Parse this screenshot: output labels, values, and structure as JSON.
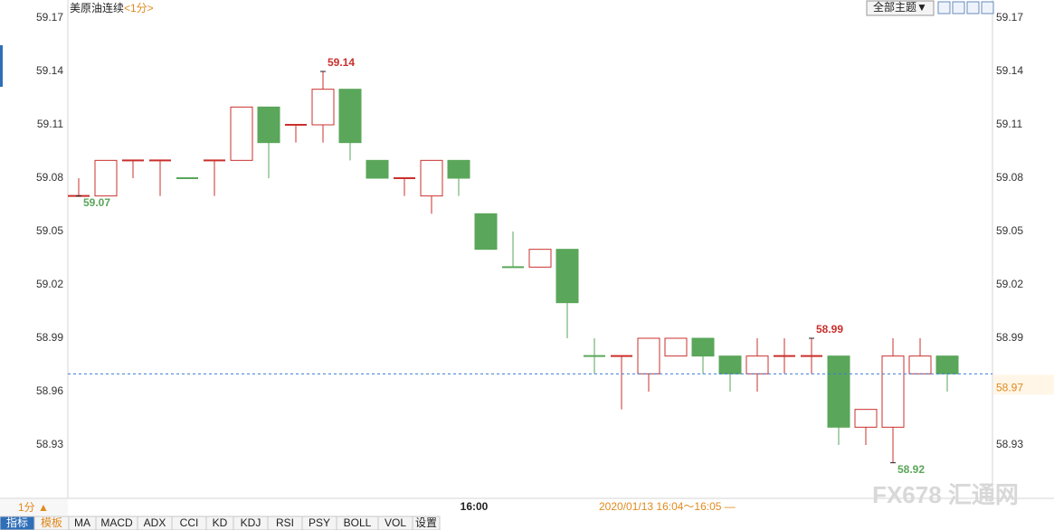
{
  "chart_data": {
    "type": "candlestick",
    "title": "美原油连续",
    "subtitle": "<1分>",
    "categories": [
      null,
      null,
      null,
      null,
      null,
      null,
      null,
      null,
      null,
      null,
      null,
      null,
      null,
      null,
      null,
      "16:00",
      null,
      null,
      null,
      null,
      null,
      null,
      null,
      null,
      null,
      null,
      null,
      null,
      null,
      null,
      null,
      null,
      null
    ],
    "open": [
      59.07,
      59.07,
      59.09,
      59.09,
      59.08,
      59.09,
      59.09,
      59.12,
      59.11,
      59.11,
      59.13,
      59.09,
      59.08,
      59.07,
      59.09,
      59.06,
      59.03,
      59.03,
      59.04,
      58.98,
      58.98,
      58.97,
      58.98,
      58.99,
      58.98,
      58.97,
      58.98,
      58.98,
      58.98,
      58.94,
      58.94,
      58.97,
      58.98
    ],
    "high": [
      59.08,
      59.09,
      59.09,
      59.09,
      59.08,
      59.09,
      59.12,
      59.12,
      59.11,
      59.14,
      59.13,
      59.09,
      59.08,
      59.09,
      59.09,
      59.06,
      59.05,
      59.04,
      59.04,
      58.99,
      58.98,
      58.99,
      58.99,
      58.99,
      58.98,
      58.99,
      58.99,
      58.99,
      58.98,
      58.95,
      58.99,
      58.99,
      58.98
    ],
    "low": [
      59.07,
      59.07,
      59.08,
      59.07,
      59.08,
      59.07,
      59.09,
      59.08,
      59.1,
      59.1,
      59.09,
      59.08,
      59.07,
      59.06,
      59.07,
      59.04,
      59.03,
      59.03,
      58.99,
      58.97,
      58.95,
      58.96,
      58.98,
      58.97,
      58.96,
      58.96,
      58.97,
      58.97,
      58.93,
      58.93,
      58.92,
      58.97,
      58.96
    ],
    "close": [
      59.07,
      59.09,
      59.09,
      59.09,
      59.08,
      59.09,
      59.12,
      59.1,
      59.11,
      59.13,
      59.1,
      59.08,
      59.08,
      59.09,
      59.08,
      59.04,
      59.03,
      59.04,
      59.01,
      58.98,
      58.98,
      58.99,
      58.99,
      58.98,
      58.97,
      58.98,
      58.98,
      58.98,
      58.94,
      58.95,
      58.98,
      58.98,
      58.97
    ],
    "up_color": "#c9302c",
    "down_color": "#5aa65a",
    "ylim": [
      58.9,
      59.17
    ],
    "yticks": [
      59.17,
      59.14,
      59.11,
      59.08,
      59.05,
      59.02,
      58.99,
      58.96,
      58.93
    ]
  },
  "header": {
    "theme_button": "全部主题▼"
  },
  "footer": {
    "period_toggle": "1分 ▲",
    "range": "2020/01/13 16:04～16:05 —",
    "tabs": [
      "指标",
      "模板",
      "MA",
      "MACD",
      "ADX",
      "CCI",
      "KD",
      "KDJ",
      "RSI",
      "PSY",
      "BOLL",
      "VOL",
      "设置"
    ]
  },
  "watermark": "FX678 汇通网"
}
